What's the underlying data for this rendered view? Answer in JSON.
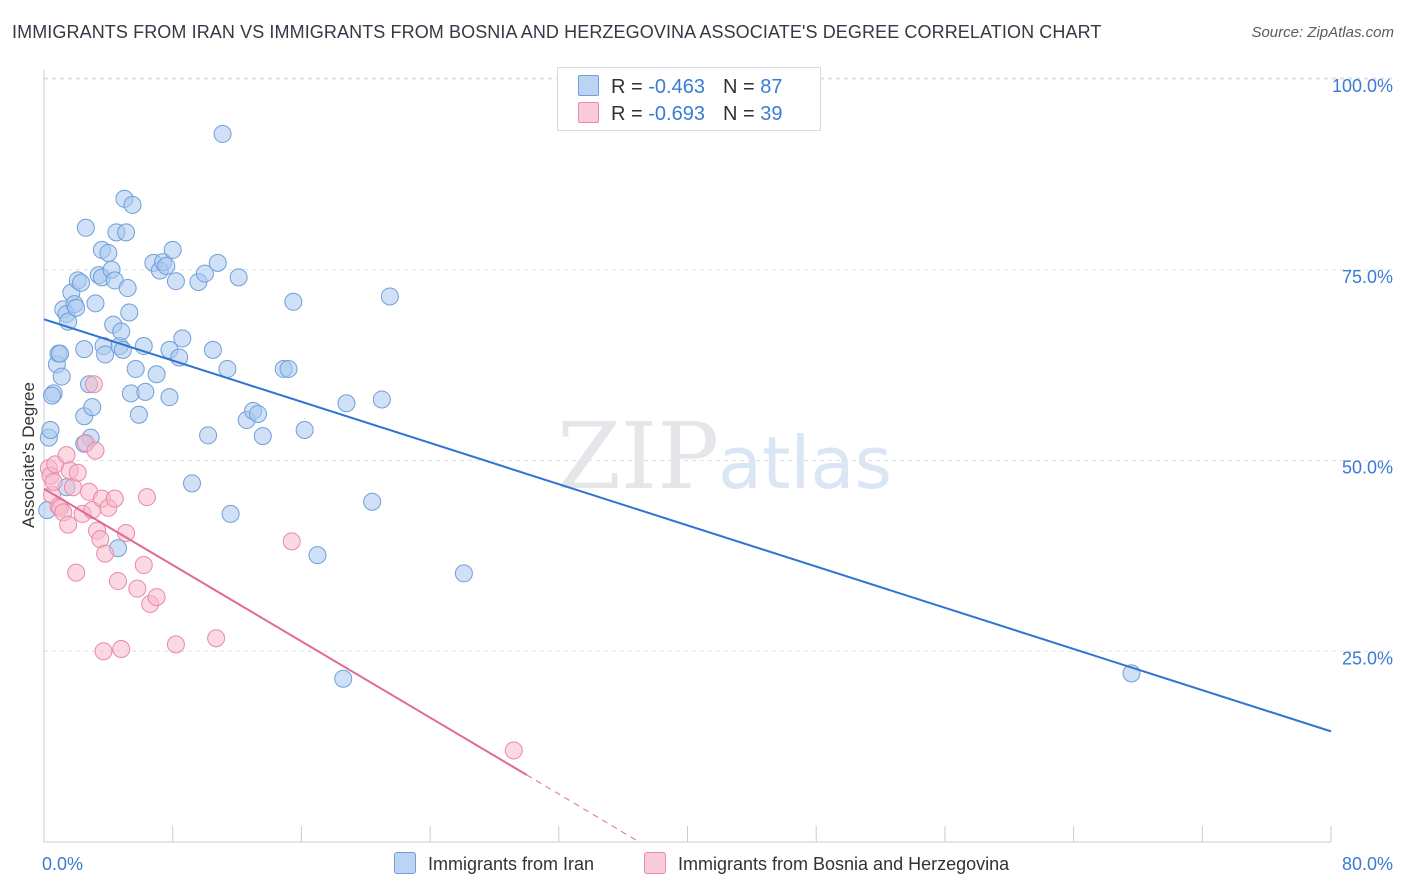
{
  "title": "IMMIGRANTS FROM IRAN VS IMMIGRANTS FROM BOSNIA AND HERZEGOVINA ASSOCIATE'S DEGREE CORRELATION CHART",
  "source": "Source: ZipAtlas.com",
  "watermark": {
    "zip": "ZIP",
    "atlas": "atlas"
  },
  "legend": {
    "iran": {
      "r_label": "R = ",
      "r_value": "-0.463",
      "n_label": "N = ",
      "n_value": "87"
    },
    "bosnia": {
      "r_label": "R = ",
      "r_value": "-0.693",
      "n_label": "N = ",
      "n_value": "39"
    }
  },
  "colors": {
    "iran_fill": "#a9c8f0",
    "iran_stroke": "#6f9fd8",
    "iran_line": "#2f74d0",
    "bosnia_fill": "#f7b8cb",
    "bosnia_stroke": "#e88aa8",
    "bosnia_line": "#e06a95",
    "tick_label": "#3a7bd5",
    "grid": "#dde1e6"
  },
  "chart_data": {
    "type": "scatter",
    "title": "IMMIGRANTS FROM IRAN VS IMMIGRANTS FROM BOSNIA AND HERZEGOVINA ASSOCIATE'S DEGREE CORRELATION CHART",
    "xlabel": "",
    "ylabel": "Associate's Degree",
    "xlim": [
      0,
      80
    ],
    "ylim": [
      0,
      100
    ],
    "x_tick_labels": [
      {
        "value": 0,
        "label": "0.0%"
      },
      {
        "value": 80,
        "label": "80.0%"
      }
    ],
    "y_tick_labels": [
      {
        "value": 100,
        "label": "100.0%"
      },
      {
        "value": 75,
        "label": "75.0%"
      },
      {
        "value": 50,
        "label": "50.0%"
      },
      {
        "value": 25,
        "label": "25.0%"
      }
    ],
    "grid": true,
    "legend_position": "top-center",
    "series": [
      {
        "name": "Immigrants from Iran",
        "r": -0.463,
        "n": 87,
        "trend": {
          "x": [
            0,
            80
          ],
          "y": [
            68.5,
            14.5
          ]
        },
        "points": [
          [
            0.2,
            43.5
          ],
          [
            0.3,
            53.0
          ],
          [
            0.4,
            54.0
          ],
          [
            0.6,
            58.8
          ],
          [
            0.8,
            62.6
          ],
          [
            0.9,
            64.0
          ],
          [
            1.0,
            64.0
          ],
          [
            1.1,
            61.0
          ],
          [
            1.2,
            69.8
          ],
          [
            1.4,
            69.2
          ],
          [
            1.5,
            68.2
          ],
          [
            1.7,
            72.0
          ],
          [
            1.9,
            70.5
          ],
          [
            2.0,
            70.0
          ],
          [
            2.1,
            73.6
          ],
          [
            2.3,
            73.3
          ],
          [
            2.5,
            64.6
          ],
          [
            2.5,
            55.8
          ],
          [
            2.6,
            80.5
          ],
          [
            2.8,
            60.0
          ],
          [
            2.9,
            53.0
          ],
          [
            3.0,
            57.0
          ],
          [
            3.2,
            70.6
          ],
          [
            3.4,
            74.3
          ],
          [
            3.6,
            74.0
          ],
          [
            3.6,
            77.6
          ],
          [
            3.7,
            65.0
          ],
          [
            3.8,
            63.9
          ],
          [
            4.0,
            77.2
          ],
          [
            4.2,
            75.0
          ],
          [
            4.3,
            67.8
          ],
          [
            4.4,
            73.6
          ],
          [
            4.5,
            79.9
          ],
          [
            4.7,
            65.0
          ],
          [
            4.8,
            66.9
          ],
          [
            4.9,
            64.5
          ],
          [
            5.0,
            84.3
          ],
          [
            5.1,
            79.9
          ],
          [
            5.2,
            72.6
          ],
          [
            5.3,
            69.4
          ],
          [
            5.5,
            83.5
          ],
          [
            5.4,
            58.8
          ],
          [
            5.7,
            62.0
          ],
          [
            5.9,
            56.0
          ],
          [
            6.2,
            65.0
          ],
          [
            6.3,
            59.0
          ],
          [
            6.8,
            75.9
          ],
          [
            7.0,
            61.3
          ],
          [
            7.2,
            74.9
          ],
          [
            7.4,
            76.0
          ],
          [
            7.6,
            75.5
          ],
          [
            7.8,
            58.3
          ],
          [
            7.8,
            64.5
          ],
          [
            8.0,
            77.6
          ],
          [
            8.2,
            73.5
          ],
          [
            8.4,
            63.5
          ],
          [
            8.6,
            66.0
          ],
          [
            9.2,
            47.0
          ],
          [
            9.6,
            73.4
          ],
          [
            10.0,
            74.5
          ],
          [
            10.2,
            53.3
          ],
          [
            10.5,
            64.5
          ],
          [
            10.8,
            75.9
          ],
          [
            11.1,
            92.8
          ],
          [
            11.4,
            62.0
          ],
          [
            11.6,
            43.0
          ],
          [
            12.1,
            74.0
          ],
          [
            12.6,
            55.3
          ],
          [
            13.0,
            56.5
          ],
          [
            13.3,
            56.1
          ],
          [
            13.6,
            53.2
          ],
          [
            14.9,
            62.0
          ],
          [
            15.2,
            62.0
          ],
          [
            15.5,
            70.8
          ],
          [
            16.2,
            54.0
          ],
          [
            17.0,
            37.6
          ],
          [
            18.6,
            21.4
          ],
          [
            18.8,
            57.5
          ],
          [
            20.4,
            44.6
          ],
          [
            21.0,
            58.0
          ],
          [
            21.5,
            71.5
          ],
          [
            26.1,
            35.2
          ],
          [
            67.6,
            22.1
          ],
          [
            0.5,
            58.5
          ],
          [
            1.4,
            46.5
          ],
          [
            2.5,
            52.2
          ],
          [
            4.6,
            38.5
          ]
        ]
      },
      {
        "name": "Immigrants from Bosnia and Herzegovina",
        "r": -0.693,
        "n": 39,
        "trend": {
          "x": [
            0,
            30
          ],
          "y": [
            46.3,
            8.8
          ]
        },
        "trend_dashed": {
          "x": [
            30,
            37
          ],
          "y": [
            8.8,
            0
          ]
        },
        "points": [
          [
            0.3,
            49.0
          ],
          [
            0.4,
            48.0
          ],
          [
            0.5,
            45.5
          ],
          [
            0.6,
            47.2
          ],
          [
            0.7,
            49.5
          ],
          [
            0.9,
            44.0
          ],
          [
            1.0,
            43.8
          ],
          [
            1.2,
            43.2
          ],
          [
            1.4,
            50.7
          ],
          [
            1.5,
            41.6
          ],
          [
            1.6,
            48.7
          ],
          [
            1.8,
            46.5
          ],
          [
            2.0,
            35.3
          ],
          [
            2.1,
            48.4
          ],
          [
            2.4,
            43.0
          ],
          [
            2.6,
            52.3
          ],
          [
            2.8,
            45.9
          ],
          [
            3.0,
            43.5
          ],
          [
            3.1,
            60.0
          ],
          [
            3.2,
            51.3
          ],
          [
            3.3,
            40.8
          ],
          [
            3.5,
            39.7
          ],
          [
            3.6,
            45.0
          ],
          [
            3.7,
            25.0
          ],
          [
            3.8,
            37.8
          ],
          [
            4.0,
            43.8
          ],
          [
            4.4,
            45.0
          ],
          [
            4.6,
            34.2
          ],
          [
            4.8,
            25.3
          ],
          [
            5.1,
            40.5
          ],
          [
            5.8,
            33.2
          ],
          [
            6.2,
            36.3
          ],
          [
            6.4,
            45.2
          ],
          [
            6.6,
            31.2
          ],
          [
            7.0,
            32.1
          ],
          [
            8.2,
            25.9
          ],
          [
            10.7,
            26.7
          ],
          [
            15.4,
            39.4
          ],
          [
            29.2,
            12.0
          ]
        ]
      }
    ]
  },
  "bottom_legend": {
    "iran": "Immigrants from Iran",
    "bosnia": "Immigrants from Bosnia and Herzegovina"
  }
}
